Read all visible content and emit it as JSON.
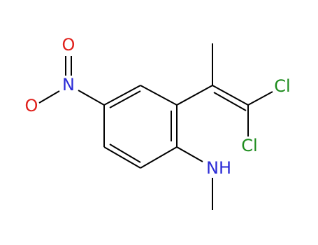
{
  "atoms": [
    {
      "label": "O"
    },
    {
      "label": "N"
    },
    {
      "label": "O"
    },
    {
      "label": "Cl"
    },
    {
      "label": "Cl"
    },
    {
      "label": "NH"
    }
  ]
}
